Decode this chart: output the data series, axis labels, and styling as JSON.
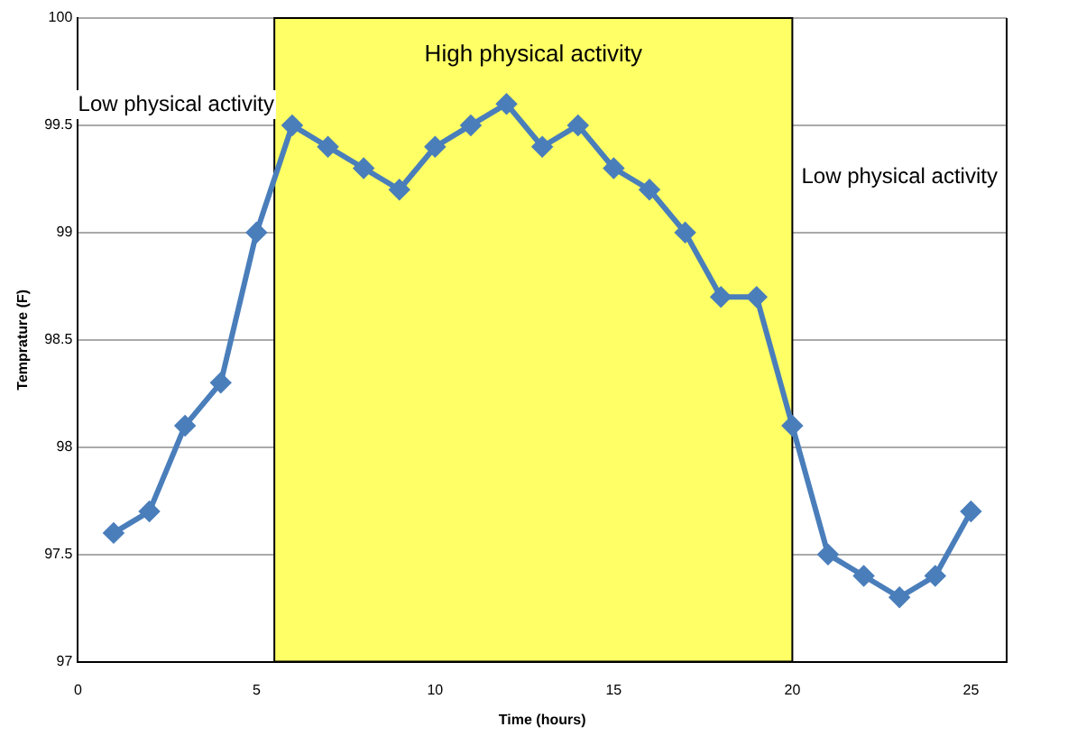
{
  "chart_data": {
    "type": "line",
    "xlabel": "Time (hours)",
    "ylabel": "Temprature (F)",
    "x": [
      1,
      2,
      3,
      4,
      5,
      6,
      7,
      8,
      9,
      10,
      11,
      12,
      13,
      14,
      15,
      16,
      17,
      18,
      19,
      20,
      21,
      22,
      23,
      24,
      25
    ],
    "series": [
      {
        "color": "#4a7ebb",
        "values": [
          97.6,
          97.7,
          98.1,
          98.3,
          99.0,
          99.5,
          99.4,
          99.3,
          99.2,
          99.4,
          99.5,
          99.6,
          99.4,
          99.5,
          99.3,
          99.2,
          99.0,
          98.7,
          98.7,
          98.1,
          97.5,
          97.4,
          97.3,
          97.4,
          97.7
        ]
      }
    ],
    "xlim": [
      0,
      26
    ],
    "xticks": [
      0,
      5,
      10,
      15,
      20,
      25
    ],
    "ylim": [
      97,
      100
    ],
    "yticks": [
      97,
      97.5,
      98,
      98.5,
      99,
      99.5,
      100
    ],
    "bands": [
      {
        "axis": "x",
        "from": 5.5,
        "to": 20,
        "label": "High physical activity",
        "color": "#ffff66"
      }
    ],
    "annotations": [
      "Low physical activity",
      "Low physical activity"
    ],
    "grid": "y",
    "legend": false,
    "marker": "diamond",
    "line_style": "solid"
  }
}
